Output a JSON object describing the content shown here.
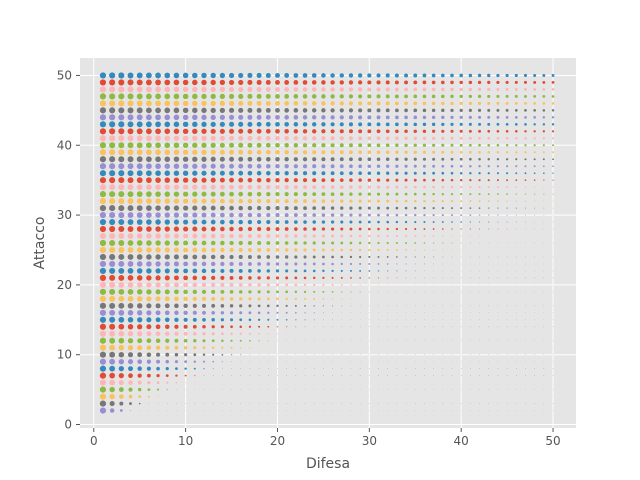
{
  "chart_data": {
    "type": "scatter",
    "title": "",
    "xlabel": "Difesa",
    "ylabel": "Attacco",
    "xlim": [
      -1.5,
      52.5
    ],
    "ylim": [
      -0.5,
      52.5
    ],
    "xticks": [
      0,
      10,
      20,
      30,
      40,
      50
    ],
    "yticks": [
      0,
      10,
      20,
      30,
      40,
      50
    ],
    "grid": true,
    "style": "ggplot",
    "x_range": [
      1,
      50
    ],
    "y_range": [
      2,
      50
    ],
    "point_rule": "one marker at every integer (x, y) with 1 <= x <= 50 and 2 <= y <= 50; color cycles with y; marker size shrinks as x grows relative to y",
    "colors": [
      "#E24A33",
      "#348ABD",
      "#988ED5",
      "#777777",
      "#FBC15E",
      "#8EBA42",
      "#FFB5B8"
    ],
    "background": "#E5E5E5",
    "grid_color": "#ffffff"
  }
}
